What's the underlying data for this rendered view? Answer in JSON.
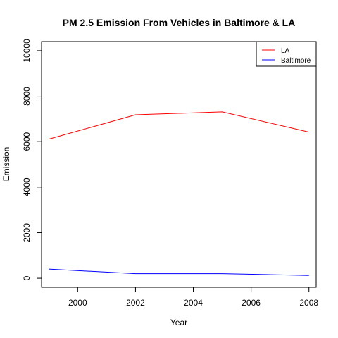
{
  "chart_data": {
    "type": "line",
    "title": "PM 2.5 Emission From Vehicles in Baltimore & LA",
    "xlabel": "Year",
    "ylabel": "Emission",
    "x": [
      1999,
      2002,
      2005,
      2008
    ],
    "xlim": [
      1998.75,
      2008.25
    ],
    "ylim": [
      -400,
      10400
    ],
    "xticks": [
      2000,
      2002,
      2004,
      2006,
      2008
    ],
    "yticks": [
      0,
      2000,
      4000,
      6000,
      8000,
      10000
    ],
    "grid": false,
    "legend_position": "top-right",
    "series": [
      {
        "name": "LA",
        "color": "#ff0000",
        "values": [
          6110,
          7180,
          7310,
          6420
        ]
      },
      {
        "name": "Baltimore",
        "color": "#0000ff",
        "values": [
          400,
          200,
          200,
          120
        ]
      }
    ]
  }
}
